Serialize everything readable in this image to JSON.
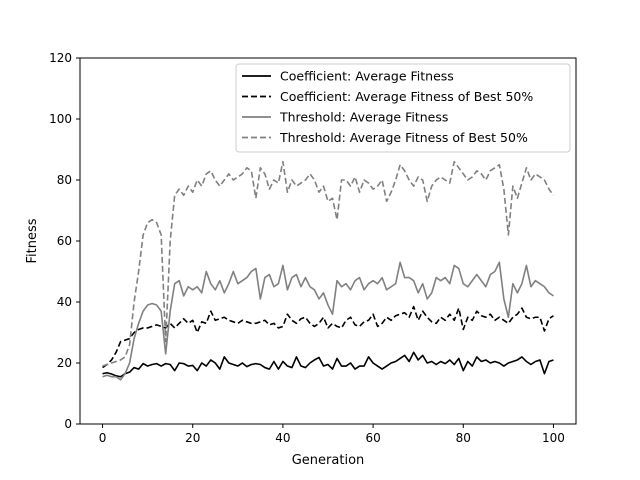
{
  "chart_data": {
    "type": "line",
    "xlabel": "Generation",
    "ylabel": "Fitness",
    "xlim": [
      -5,
      105
    ],
    "ylim": [
      0,
      120
    ],
    "x_ticks": [
      0,
      20,
      40,
      60,
      80,
      100
    ],
    "y_ticks": [
      0,
      20,
      40,
      60,
      80,
      100,
      120
    ],
    "grid": false,
    "legend_position": "top-right",
    "x": [
      0,
      1,
      2,
      3,
      4,
      5,
      6,
      7,
      8,
      9,
      10,
      11,
      12,
      13,
      14,
      15,
      16,
      17,
      18,
      19,
      20,
      21,
      22,
      23,
      24,
      25,
      26,
      27,
      28,
      29,
      30,
      31,
      32,
      33,
      34,
      35,
      36,
      37,
      38,
      39,
      40,
      41,
      42,
      43,
      44,
      45,
      46,
      47,
      48,
      49,
      50,
      51,
      52,
      53,
      54,
      55,
      56,
      57,
      58,
      59,
      60,
      61,
      62,
      63,
      64,
      65,
      66,
      67,
      68,
      69,
      70,
      71,
      72,
      73,
      74,
      75,
      76,
      77,
      78,
      79,
      80,
      81,
      82,
      83,
      84,
      85,
      86,
      87,
      88,
      89,
      90,
      91,
      92,
      93,
      94,
      95,
      96,
      97,
      98,
      99,
      100
    ],
    "series": [
      {
        "name": "Coefficient: Average Fitness",
        "color": "#000000",
        "dash": "solid",
        "values": [
          16.5,
          16.8,
          16.4,
          15.8,
          15.5,
          16.5,
          17.0,
          18.5,
          18.0,
          19.8,
          19.0,
          19.5,
          19.8,
          19.0,
          19.8,
          19.5,
          17.5,
          20.0,
          19.8,
          19.0,
          19.2,
          17.5,
          20.0,
          19.0,
          21.0,
          20.0,
          18.0,
          22.0,
          20.0,
          19.5,
          19.0,
          20.0,
          18.8,
          19.5,
          19.8,
          19.5,
          18.5,
          18.0,
          20.5,
          18.0,
          20.5,
          19.0,
          18.5,
          22.0,
          19.0,
          18.5,
          20.0,
          21.0,
          21.8,
          19.0,
          19.5,
          18.0,
          21.5,
          19.0,
          19.0,
          20.0,
          18.0,
          19.0,
          19.0,
          22.0,
          20.0,
          19.0,
          18.0,
          19.0,
          20.0,
          20.5,
          21.5,
          22.5,
          20.5,
          23.5,
          21.0,
          22.5,
          20.0,
          20.5,
          19.5,
          20.5,
          19.8,
          21.0,
          19.5,
          21.5,
          17.5,
          20.5,
          19.0,
          22.0,
          20.5,
          21.0,
          20.0,
          20.5,
          20.0,
          19.0,
          20.0,
          20.5,
          21.0,
          22.0,
          20.5,
          19.5,
          20.5,
          21.0,
          16.5,
          20.5,
          21.0
        ]
      },
      {
        "name": "Coefficient: Average Fitness of Best 50%",
        "color": "#000000",
        "dash": "dashed",
        "values": [
          18.5,
          19.5,
          21.0,
          23.5,
          27.0,
          27.5,
          28.0,
          30.0,
          31.0,
          31.5,
          31.5,
          32.0,
          32.5,
          32.0,
          31.5,
          33.0,
          31.5,
          33.0,
          34.5,
          33.0,
          34.0,
          30.0,
          33.5,
          33.0,
          37.0,
          34.0,
          34.5,
          35.0,
          34.0,
          33.5,
          33.0,
          34.0,
          33.5,
          33.0,
          33.0,
          33.5,
          34.0,
          32.5,
          33.0,
          31.5,
          32.0,
          36.0,
          34.0,
          33.0,
          34.5,
          35.0,
          33.0,
          32.0,
          33.0,
          35.0,
          31.5,
          33.0,
          32.0,
          31.5,
          34.0,
          35.0,
          32.5,
          32.0,
          33.5,
          34.0,
          36.0,
          32.0,
          33.0,
          35.0,
          34.0,
          35.5,
          36.0,
          36.5,
          35.0,
          38.5,
          34.0,
          37.0,
          35.0,
          33.5,
          33.0,
          35.0,
          34.0,
          36.0,
          34.0,
          38.0,
          31.0,
          35.0,
          34.0,
          37.0,
          35.5,
          35.0,
          36.0,
          34.0,
          35.0,
          34.0,
          33.0,
          35.0,
          36.0,
          38.0,
          35.0,
          34.5,
          35.0,
          35.0,
          30.5,
          34.5,
          35.5
        ]
      },
      {
        "name": "Threshold: Average Fitness",
        "color": "#808080",
        "dash": "solid",
        "values": [
          15.5,
          16.0,
          15.5,
          15.5,
          14.5,
          16.5,
          20.0,
          28.0,
          33.0,
          37.0,
          39.0,
          39.5,
          39.0,
          37.0,
          23.0,
          37.0,
          46.0,
          47.0,
          42.0,
          45.0,
          44.0,
          45.0,
          43.0,
          50.0,
          46.0,
          44.0,
          47.0,
          43.0,
          46.0,
          50.0,
          46.0,
          47.0,
          48.0,
          50.0,
          51.0,
          41.0,
          48.0,
          49.0,
          45.0,
          46.0,
          52.0,
          44.0,
          48.0,
          49.0,
          45.0,
          48.0,
          45.0,
          44.0,
          41.0,
          43.0,
          39.0,
          36.0,
          47.0,
          45.0,
          46.0,
          44.0,
          47.0,
          48.0,
          44.0,
          46.0,
          47.0,
          46.0,
          48.0,
          44.0,
          45.0,
          46.0,
          53.0,
          48.0,
          48.0,
          47.0,
          43.0,
          46.0,
          41.0,
          43.0,
          48.0,
          47.0,
          48.0,
          46.0,
          52.0,
          51.0,
          46.0,
          45.0,
          47.0,
          49.0,
          47.0,
          45.0,
          49.0,
          50.0,
          53.0,
          41.0,
          35.0,
          46.0,
          43.0,
          46.0,
          52.0,
          45.0,
          47.0,
          46.0,
          45.0,
          43.0,
          42.0
        ]
      },
      {
        "name": "Threshold: Average Fitness of Best 50%",
        "color": "#808080",
        "dash": "dashed",
        "values": [
          19.0,
          19.5,
          20.0,
          20.5,
          21.0,
          22.0,
          26.0,
          40.0,
          50.0,
          62.0,
          66.0,
          67.0,
          66.0,
          62.0,
          27.0,
          60.0,
          75.0,
          77.0,
          75.0,
          78.0,
          76.0,
          80.0,
          78.0,
          82.0,
          83.0,
          80.0,
          78.0,
          80.0,
          82.0,
          80.0,
          81.0,
          82.0,
          84.0,
          83.0,
          74.0,
          84.0,
          82.0,
          77.0,
          80.0,
          79.0,
          86.0,
          76.0,
          80.0,
          78.0,
          79.0,
          80.0,
          82.0,
          80.0,
          76.0,
          78.0,
          73.0,
          74.0,
          67.0,
          80.0,
          80.0,
          78.0,
          81.0,
          76.0,
          80.0,
          79.0,
          77.0,
          78.0,
          80.0,
          73.0,
          76.0,
          80.0,
          85.0,
          83.0,
          80.0,
          78.0,
          81.0,
          80.0,
          73.0,
          78.0,
          80.0,
          81.0,
          80.0,
          79.0,
          86.0,
          84.0,
          82.0,
          80.0,
          81.0,
          83.0,
          82.0,
          80.0,
          83.0,
          84.0,
          85.0,
          77.0,
          62.0,
          78.0,
          74.0,
          79.0,
          84.0,
          80.0,
          82.0,
          81.0,
          80.0,
          77.0,
          75.0
        ]
      }
    ]
  }
}
